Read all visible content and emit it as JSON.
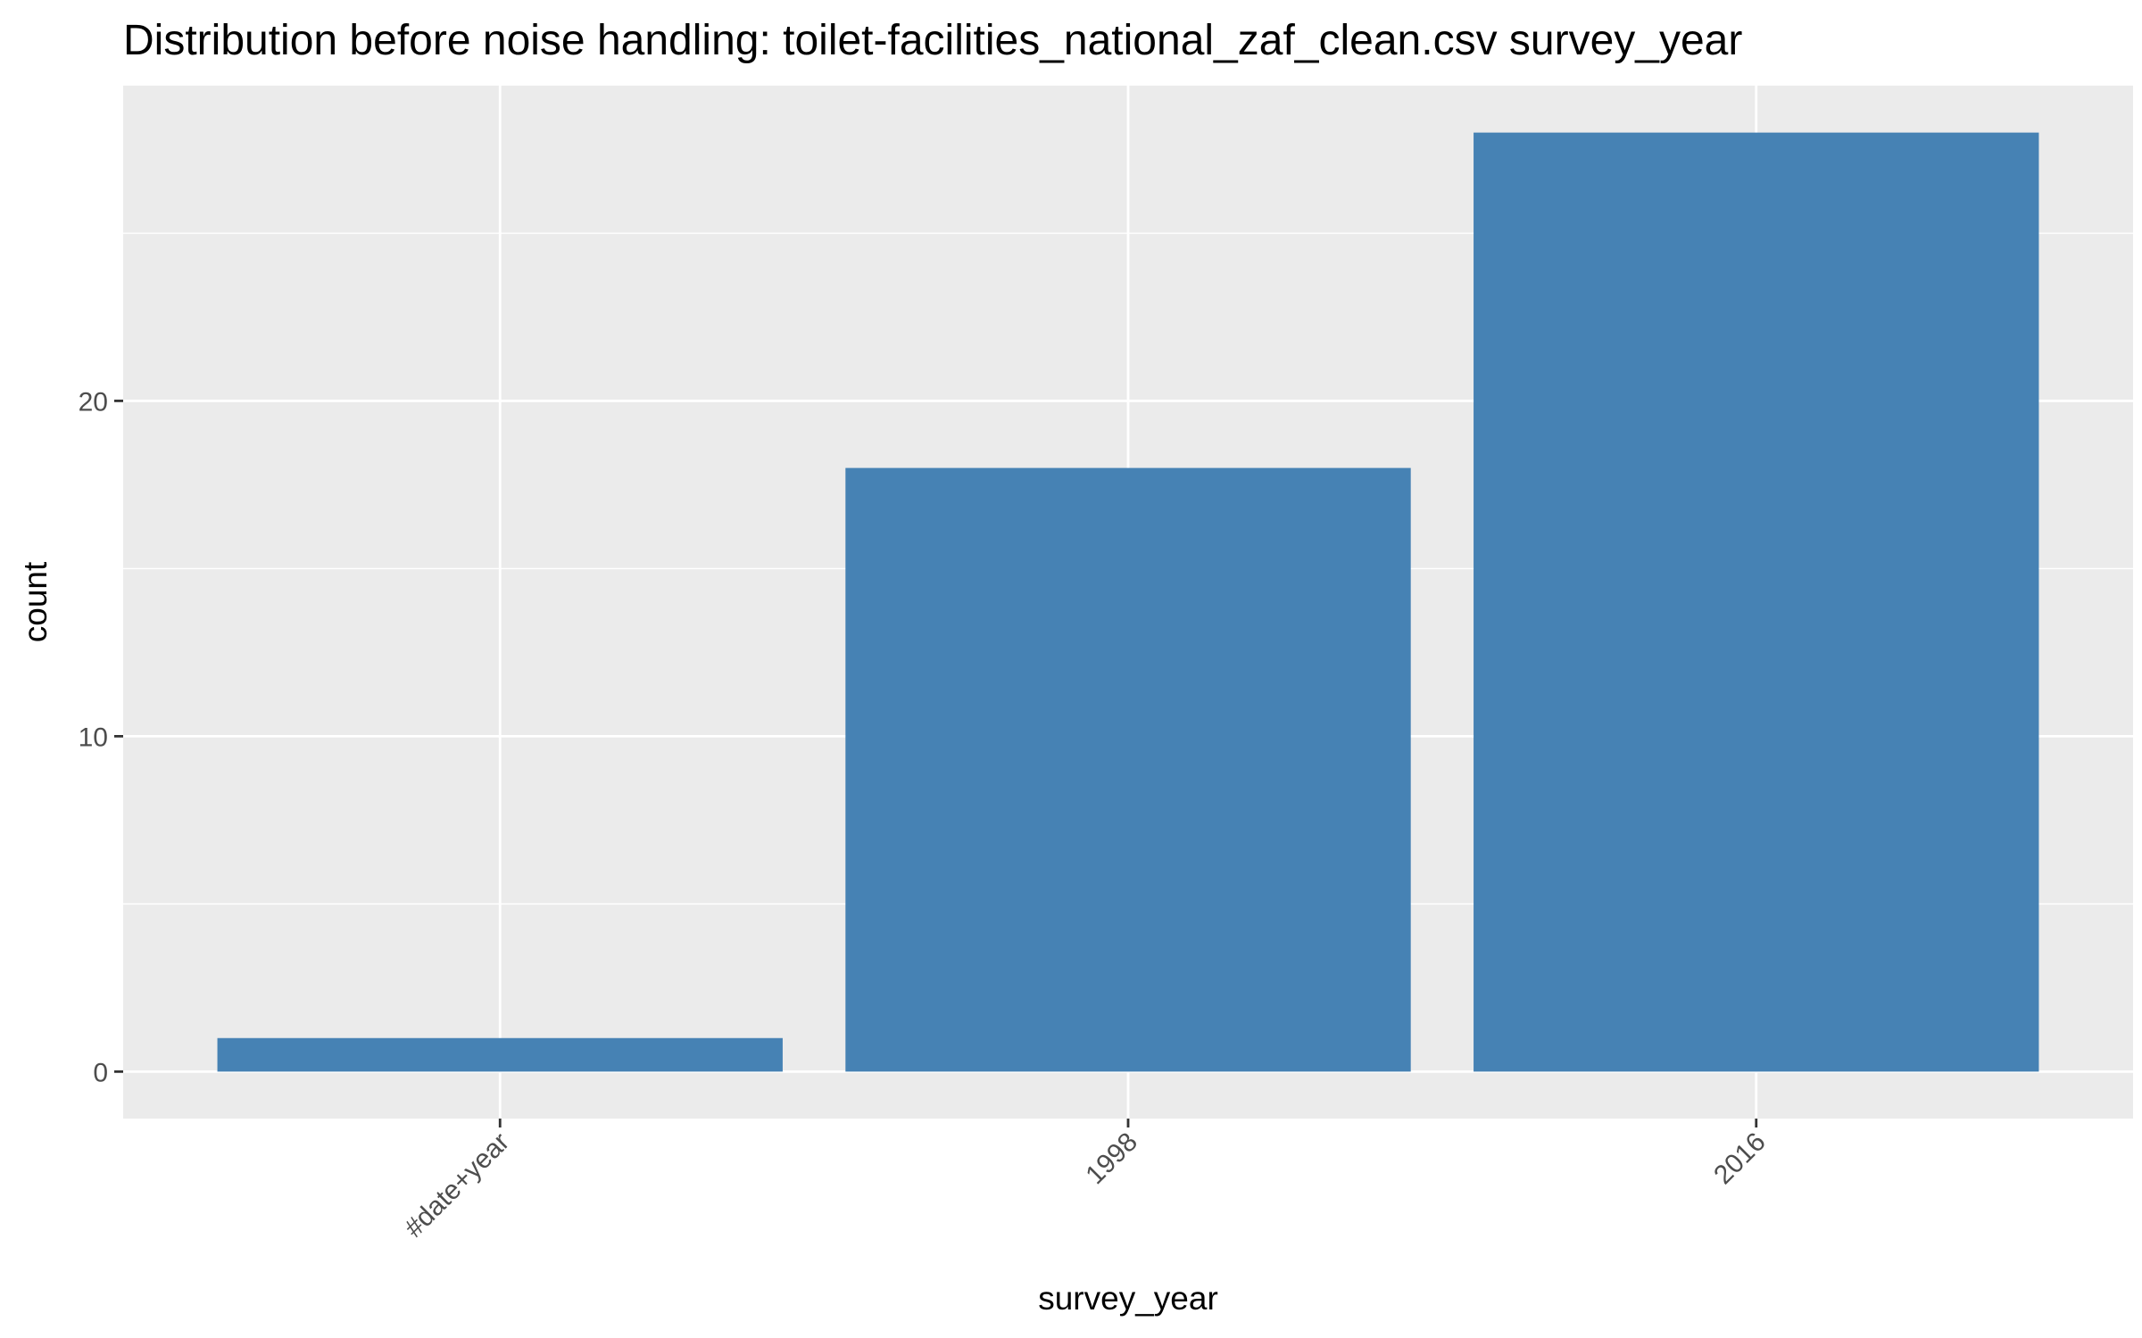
{
  "chart_data": {
    "type": "bar",
    "title": "Distribution before noise handling: toilet-facilities_national_zaf_clean.csv survey_year",
    "xlabel": "survey_year",
    "ylabel": "count",
    "categories": [
      "#date+year",
      "1998",
      "2016"
    ],
    "values": [
      1,
      18,
      28
    ],
    "ylim": [
      -1.4,
      29.4
    ],
    "yticks": [
      0,
      10,
      20
    ],
    "grid": true,
    "legend": "none",
    "colors": {
      "bar": "#4682B4",
      "panel": "#EBEBEB",
      "grid": "#FFFFFF",
      "tick_text": "#4D4D4D"
    }
  }
}
